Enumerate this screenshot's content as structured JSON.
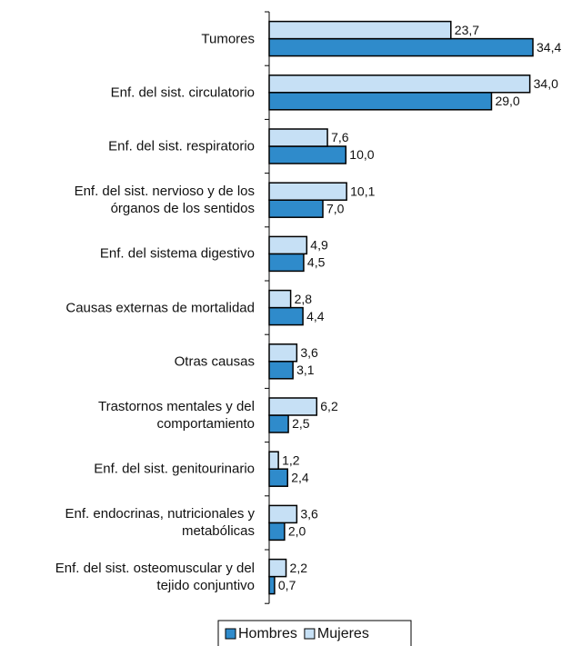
{
  "chart_data": {
    "type": "bar",
    "orientation": "horizontal",
    "categories": [
      "Tumores",
      "Enf. del sist. circulatorio",
      "Enf. del sist. respiratorio",
      "Enf. del sist. nervioso y de los\nórganos de los sentidos",
      "Enf. del sistema digestivo",
      "Causas externas de mortalidad",
      "Otras causas",
      "Trastornos mentales y del\ncomportamiento",
      "Enf. del sist. genitourinario",
      "Enf. endocrinas, nutricionales y\nmetabólicas",
      "Enf. del sist. osteomuscular y del\ntejido conjuntivo"
    ],
    "series": [
      {
        "name": "Hombres",
        "color": "#2f8bcb",
        "values": [
          34.4,
          29.0,
          10.0,
          7.0,
          4.5,
          4.4,
          3.1,
          2.5,
          2.4,
          2.0,
          0.7
        ],
        "value_labels": [
          "34,4",
          "29,0",
          "10,0",
          "7,0",
          "4,5",
          "4,4",
          "3,1",
          "2,5",
          "2,4",
          "2,0",
          "0,7"
        ]
      },
      {
        "name": "Mujeres",
        "color": "#c6e0f5",
        "values": [
          23.7,
          34.0,
          7.6,
          10.1,
          4.9,
          2.8,
          3.6,
          6.2,
          1.2,
          3.6,
          2.2
        ],
        "value_labels": [
          "23,7",
          "34,0",
          "7,6",
          "10,1",
          "4,9",
          "2,8",
          "3,6",
          "6,2",
          "1,2",
          "3,6",
          "2,2"
        ]
      }
    ],
    "legend": "bottom"
  }
}
